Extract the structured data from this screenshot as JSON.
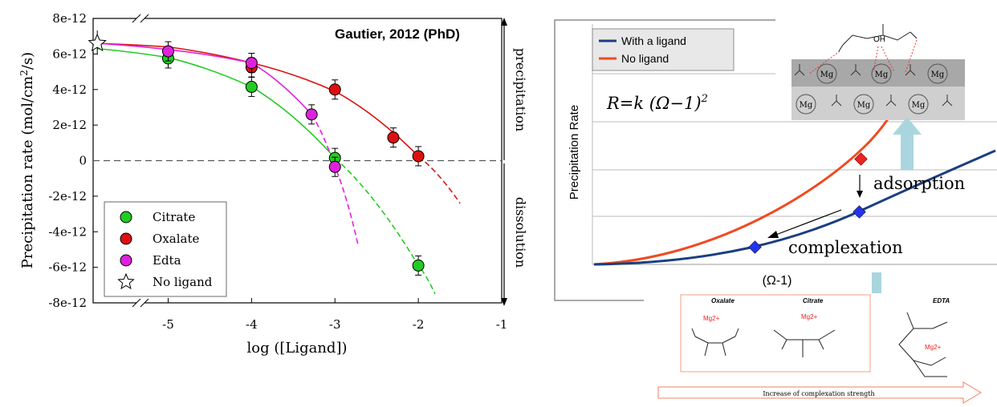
{
  "left": {
    "title": "Gautier, 2012 (PhD)",
    "xlabel": "log ([Ligand])",
    "ylabel": "Precipitation rate (mol/cm2/s)",
    "side_top": "precipitation",
    "side_bottom": "dissolution",
    "colors": {
      "citrate": "#22cc22",
      "oxalate": "#dd1111",
      "edta": "#dd22dd",
      "grid": "#333333"
    }
  },
  "right": {
    "ylabel": "Precipitation Rate",
    "xlabel": "(Ω-1)",
    "formula": "R=k (Ω−1)",
    "formula_exp": "2",
    "adsorption": "adsorption",
    "complexation": "complexation",
    "legend": [
      "With a ligand",
      "No ligand"
    ],
    "structures": {
      "oxalate": "Oxalate",
      "citrate": "Citrate",
      "edta": "EDTA",
      "mg": "Mg",
      "mg2": "Mg2+",
      "oh": "OH"
    },
    "arrow_text": "Increase of complexation strength",
    "colors": {
      "with_ligand": "#1a3f80",
      "no_ligand": "#f04a20",
      "arrow": "#a9d6de"
    }
  },
  "chart_data": [
    {
      "type": "scatter",
      "title": "Gautier, 2012 (PhD)",
      "xlabel": "log ([Ligand])",
      "ylabel": "Precipitation rate (mol/cm2/s)",
      "xlim": [
        -5.9,
        -1
      ],
      "ylim": [
        -8e-12,
        8e-12
      ],
      "xticks": [
        "-5",
        "-4",
        "-3",
        "-2",
        "-1"
      ],
      "yticks": [
        "8e-12",
        "6e-12",
        "4e-12",
        "2e-12",
        "0",
        "-2e-12",
        "-4e-12",
        "-6e-12",
        "-8e-12"
      ],
      "legend_position": "bottom-left",
      "series": [
        {
          "name": "Citrate",
          "color": "#22cc22",
          "x": [
            -5,
            -4,
            -3,
            -2
          ],
          "y": [
            5.75e-12,
            4.15e-12,
            1.5e-13,
            -5.9e-12
          ]
        },
        {
          "name": "Oxalate",
          "color": "#dd1111",
          "x": [
            -4,
            -3,
            -2.3,
            -2
          ],
          "y": [
            5.25e-12,
            4e-12,
            1.3e-12,
            2.5e-13
          ]
        },
        {
          "name": "Edta",
          "color": "#dd22dd",
          "x": [
            -5,
            -4,
            -3.28,
            -3
          ],
          "y": [
            6.15e-12,
            5.5e-12,
            2.6e-12,
            -3.5e-13
          ]
        },
        {
          "name": "No ligand",
          "color": "#ffffff",
          "x": [
            -5.85
          ],
          "y": [
            6.6e-12
          ]
        }
      ],
      "fits": [
        {
          "color": "#22cc22",
          "x": [
            -5.85,
            -5,
            -4,
            -3,
            -2,
            -1.8
          ],
          "y": [
            6.3e-12,
            5.8e-12,
            4.15e-12,
            1.5e-13,
            -5.9e-12,
            -7.5e-12
          ]
        },
        {
          "color": "#dd1111",
          "x": [
            -5.85,
            -5,
            -4,
            -3,
            -2,
            -1.5
          ],
          "y": [
            6.6e-12,
            6.4e-12,
            5.5e-12,
            3.9e-12,
            2.5e-13,
            -2.4e-12
          ]
        },
        {
          "color": "#dd22dd",
          "x": [
            -5.85,
            -5,
            -4,
            -3.28,
            -3,
            -2.72
          ],
          "y": [
            6.6e-12,
            6.25e-12,
            5.5e-12,
            2.6e-12,
            -3.5e-13,
            -4.8e-12
          ]
        }
      ]
    },
    {
      "type": "line",
      "xlabel": "(Ω-1)",
      "ylabel": "Precipitation Rate",
      "legend_position": "top-left",
      "series": [
        {
          "name": "With a ligand",
          "color": "#1a3f80"
        },
        {
          "name": "No ligand",
          "color": "#f04a20"
        }
      ]
    }
  ]
}
